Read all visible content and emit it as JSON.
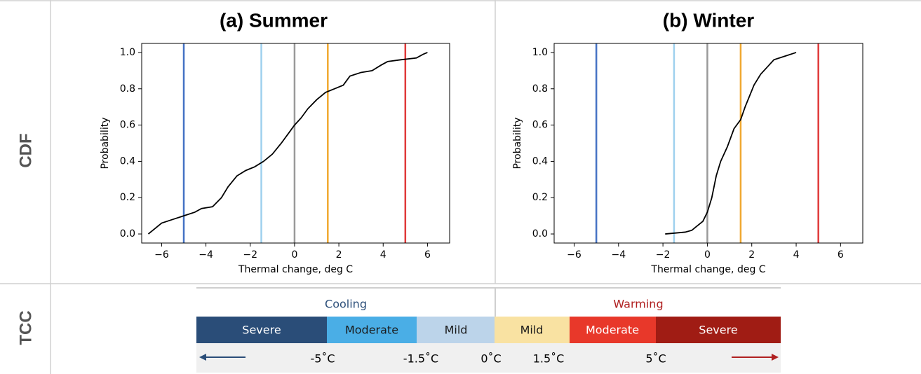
{
  "row_labels": [
    "CDF",
    "TCC"
  ],
  "chart_data": [
    {
      "type": "line",
      "title": "(a) Summer",
      "xlabel": "Thermal change, deg C",
      "ylabel": "Probability",
      "x": [
        -6.6,
        -6.3,
        -6.0,
        -5.5,
        -5.0,
        -4.5,
        -4.2,
        -3.7,
        -3.3,
        -3.0,
        -2.6,
        -2.2,
        -1.8,
        -1.4,
        -1.0,
        -0.6,
        -0.3,
        0.0,
        0.3,
        0.6,
        1.0,
        1.4,
        1.8,
        2.2,
        2.5,
        3.0,
        3.5,
        3.9,
        4.2,
        4.8,
        5.5,
        5.8,
        6.0
      ],
      "series": [
        {
          "color": "#000000",
          "values": [
            0.0,
            0.03,
            0.06,
            0.08,
            0.1,
            0.12,
            0.14,
            0.15,
            0.2,
            0.26,
            0.32,
            0.35,
            0.37,
            0.4,
            0.44,
            0.5,
            0.55,
            0.6,
            0.64,
            0.69,
            0.74,
            0.78,
            0.8,
            0.82,
            0.87,
            0.89,
            0.9,
            0.93,
            0.95,
            0.96,
            0.97,
            0.99,
            1.0
          ]
        }
      ],
      "vlines": [
        {
          "x": -5,
          "color": "#4472c4"
        },
        {
          "x": -1.5,
          "color": "#9fd1ee"
        },
        {
          "x": 0,
          "color": "#999999"
        },
        {
          "x": 1.5,
          "color": "#f0a830"
        },
        {
          "x": 5,
          "color": "#e03a3a"
        }
      ],
      "xlim": [
        -6.9,
        7.0
      ],
      "ylim": [
        -0.05,
        1.05
      ],
      "xticks": [
        {
          "value": -6,
          "label": "−6"
        },
        {
          "value": -4,
          "label": "−4"
        },
        {
          "value": -2,
          "label": "−2"
        },
        0,
        2,
        4,
        6
      ],
      "yticks": [
        {
          "value": 0,
          "label": "0.0"
        },
        {
          "value": 0.2,
          "label": "0.2"
        },
        {
          "value": 0.4,
          "label": "0.4"
        },
        {
          "value": 0.6,
          "label": "0.6"
        },
        {
          "value": 0.8,
          "label": "0.8"
        },
        {
          "value": 1,
          "label": "1.0"
        }
      ]
    },
    {
      "type": "line",
      "title": "(b) Winter",
      "xlabel": "Thermal change, deg C",
      "ylabel": "Probability",
      "x": [
        -1.9,
        -1.0,
        -0.7,
        -0.4,
        -0.2,
        0.0,
        0.2,
        0.4,
        0.6,
        0.9,
        1.2,
        1.5,
        1.7,
        1.9,
        2.1,
        2.4,
        2.7,
        3.0,
        3.5,
        4.0
      ],
      "series": [
        {
          "color": "#000000",
          "values": [
            0.0,
            0.01,
            0.02,
            0.05,
            0.07,
            0.12,
            0.2,
            0.32,
            0.4,
            0.48,
            0.58,
            0.63,
            0.7,
            0.76,
            0.82,
            0.88,
            0.92,
            0.96,
            0.98,
            1.0
          ]
        }
      ],
      "vlines": [
        {
          "x": -5,
          "color": "#4472c4"
        },
        {
          "x": -1.5,
          "color": "#9fd1ee"
        },
        {
          "x": 0,
          "color": "#999999"
        },
        {
          "x": 1.5,
          "color": "#f0a830"
        },
        {
          "x": 5,
          "color": "#e03a3a"
        }
      ],
      "xlim": [
        -6.9,
        7.0
      ],
      "ylim": [
        -0.05,
        1.05
      ],
      "xticks": [
        {
          "value": -6,
          "label": "−6"
        },
        {
          "value": -4,
          "label": "−4"
        },
        {
          "value": -2,
          "label": "−2"
        },
        0,
        2,
        4,
        6
      ],
      "yticks": [
        {
          "value": 0,
          "label": "0.0"
        },
        {
          "value": 0.2,
          "label": "0.2"
        },
        {
          "value": 0.4,
          "label": "0.4"
        },
        {
          "value": 0.6,
          "label": "0.6"
        },
        {
          "value": 0.8,
          "label": "0.8"
        },
        {
          "value": 1,
          "label": "1.0"
        }
      ]
    }
  ],
  "tcc": {
    "groups": [
      "Cooling",
      "Warming"
    ],
    "classes": [
      "Severe",
      "Moderate",
      "Mild",
      "Mild",
      "Moderate",
      "Severe"
    ],
    "thresholds": [
      "-5˚C",
      "-1.5˚C",
      "0˚C",
      "1.5˚C",
      "5˚C"
    ]
  }
}
